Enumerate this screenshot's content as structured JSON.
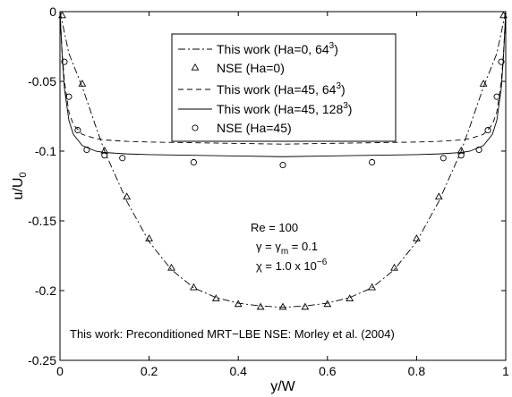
{
  "chart_data": {
    "type": "line",
    "xlabel": "y/W",
    "ylabel_main": "u/U",
    "ylabel_sub": "0",
    "xlim": [
      0,
      1
    ],
    "ylim": [
      -0.25,
      0
    ],
    "xticks": [
      {
        "v": 0,
        "label": "0"
      },
      {
        "v": 0.2,
        "label": "0.2"
      },
      {
        "v": 0.4,
        "label": "0.4"
      },
      {
        "v": 0.6,
        "label": "0.6"
      },
      {
        "v": 0.8,
        "label": "0.8"
      },
      {
        "v": 1,
        "label": "1"
      }
    ],
    "yticks": [
      {
        "v": 0,
        "label": "0"
      },
      {
        "v": -0.05,
        "label": "-0.05"
      },
      {
        "v": -0.1,
        "label": "-0.1"
      },
      {
        "v": -0.15,
        "label": "-0.15"
      },
      {
        "v": -0.2,
        "label": "-0.2"
      },
      {
        "v": -0.25,
        "label": "-0.25"
      }
    ],
    "grid": false,
    "legend_position": "top-center",
    "series": [
      {
        "name": "This work (Ha=0, 64",
        "sup": "3",
        "name_tail": ")",
        "style": "dashdot",
        "marker": "none",
        "x": [
          0,
          0.02,
          0.05,
          0.08,
          0.1,
          0.15,
          0.2,
          0.25,
          0.3,
          0.35,
          0.4,
          0.45,
          0.5,
          0.55,
          0.6,
          0.65,
          0.7,
          0.75,
          0.8,
          0.85,
          0.9,
          0.92,
          0.95,
          0.98,
          1
        ],
        "y": [
          0,
          -0.03,
          -0.054,
          -0.082,
          -0.1,
          -0.136,
          -0.165,
          -0.185,
          -0.198,
          -0.205,
          -0.209,
          -0.211,
          -0.212,
          -0.211,
          -0.209,
          -0.205,
          -0.198,
          -0.185,
          -0.165,
          -0.136,
          -0.1,
          -0.082,
          -0.054,
          -0.03,
          0
        ]
      },
      {
        "name": "NSE (Ha=0)",
        "sup": "",
        "name_tail": "",
        "style": "none",
        "marker": "triangle",
        "x": [
          0.005,
          0.05,
          0.1,
          0.15,
          0.2,
          0.25,
          0.3,
          0.35,
          0.4,
          0.45,
          0.5,
          0.55,
          0.6,
          0.65,
          0.7,
          0.75,
          0.8,
          0.85,
          0.9,
          0.95,
          0.995
        ],
        "y": [
          -0.003,
          -0.052,
          -0.1,
          -0.133,
          -0.163,
          -0.184,
          -0.198,
          -0.206,
          -0.21,
          -0.212,
          -0.212,
          -0.212,
          -0.21,
          -0.206,
          -0.198,
          -0.184,
          -0.163,
          -0.133,
          -0.1,
          -0.052,
          -0.003
        ]
      },
      {
        "name": "This work (Ha=45, 64",
        "sup": "3",
        "name_tail": ")",
        "style": "dashed",
        "marker": "none",
        "x": [
          0,
          0.005,
          0.01,
          0.02,
          0.03,
          0.05,
          0.08,
          0.1,
          0.15,
          0.2,
          0.3,
          0.4,
          0.5,
          0.6,
          0.7,
          0.8,
          0.85,
          0.9,
          0.92,
          0.95,
          0.97,
          0.98,
          0.99,
          0.995,
          1
        ],
        "y": [
          0,
          -0.03,
          -0.05,
          -0.072,
          -0.081,
          -0.088,
          -0.091,
          -0.092,
          -0.093,
          -0.0935,
          -0.094,
          -0.0945,
          -0.095,
          -0.0945,
          -0.094,
          -0.0935,
          -0.093,
          -0.092,
          -0.091,
          -0.088,
          -0.081,
          -0.072,
          -0.05,
          -0.03,
          0
        ]
      },
      {
        "name": "This work (Ha=45, 128",
        "sup": "3",
        "name_tail": ")",
        "style": "solid",
        "marker": "none",
        "x": [
          0,
          0.005,
          0.01,
          0.02,
          0.03,
          0.05,
          0.08,
          0.1,
          0.15,
          0.2,
          0.3,
          0.4,
          0.5,
          0.6,
          0.7,
          0.8,
          0.85,
          0.9,
          0.92,
          0.95,
          0.97,
          0.98,
          0.99,
          0.995,
          1
        ],
        "y": [
          0,
          -0.032,
          -0.055,
          -0.078,
          -0.088,
          -0.096,
          -0.1,
          -0.101,
          -0.102,
          -0.1025,
          -0.103,
          -0.1035,
          -0.104,
          -0.1035,
          -0.103,
          -0.1025,
          -0.102,
          -0.101,
          -0.1,
          -0.096,
          -0.088,
          -0.078,
          -0.055,
          -0.032,
          0
        ]
      },
      {
        "name": "NSE (Ha=45)",
        "sup": "",
        "name_tail": "",
        "style": "none",
        "marker": "circle",
        "x": [
          0.01,
          0.02,
          0.04,
          0.06,
          0.1,
          0.14,
          0.3,
          0.5,
          0.7,
          0.86,
          0.9,
          0.94,
          0.96,
          0.98,
          0.99
        ],
        "y": [
          -0.036,
          -0.061,
          -0.085,
          -0.099,
          -0.103,
          -0.105,
          -0.108,
          -0.11,
          -0.108,
          -0.105,
          -0.103,
          -0.099,
          -0.085,
          -0.061,
          -0.036
        ]
      }
    ],
    "annotations": {
      "re": "Re = 100",
      "gamma_a": "γ = γ",
      "gamma_sub": "m",
      "gamma_b": " = 0.1",
      "chi_a": "χ = 1.0 x 10",
      "chi_sup": "−6",
      "footer": "This work: Preconditioned MRT−LBE    NSE: Morley et al. (2004)"
    }
  }
}
